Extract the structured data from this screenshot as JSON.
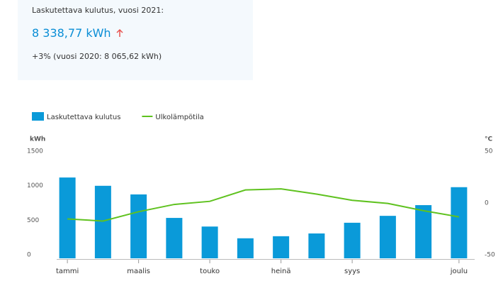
{
  "summary": {
    "title": "Laskutettava kulutus, vuosi 2021:",
    "value": "8 338,77 kWh",
    "change": "+3% (vuosi 2020: 8 065,62 kWh)"
  },
  "chart_data": {
    "type": "bar",
    "y_label": "kWh",
    "y2_label": "°C",
    "categories": [
      "tammi",
      null,
      "maalis",
      null,
      "touko",
      null,
      "heinä",
      null,
      "syys",
      null,
      null,
      "joulu"
    ],
    "series": [
      {
        "name": "Laskutettava kulutus",
        "type": "bar",
        "color": "#0a9ad9",
        "values": [
          1170,
          1050,
          925,
          585,
          460,
          290,
          320,
          360,
          515,
          615,
          770,
          1030
        ]
      },
      {
        "name": "Ulkolämpötila",
        "type": "line",
        "axis": "y2",
        "color": "#5fc21f",
        "values": [
          -12,
          -14,
          -5,
          2,
          5,
          16,
          17,
          12,
          6,
          3,
          -4,
          -10
        ]
      }
    ],
    "ylim": [
      0,
      1500
    ],
    "yticks": [
      0,
      500,
      1000,
      1500
    ],
    "y2lim": [
      -50,
      50
    ],
    "y2ticks": [
      -50,
      0,
      50
    ]
  }
}
